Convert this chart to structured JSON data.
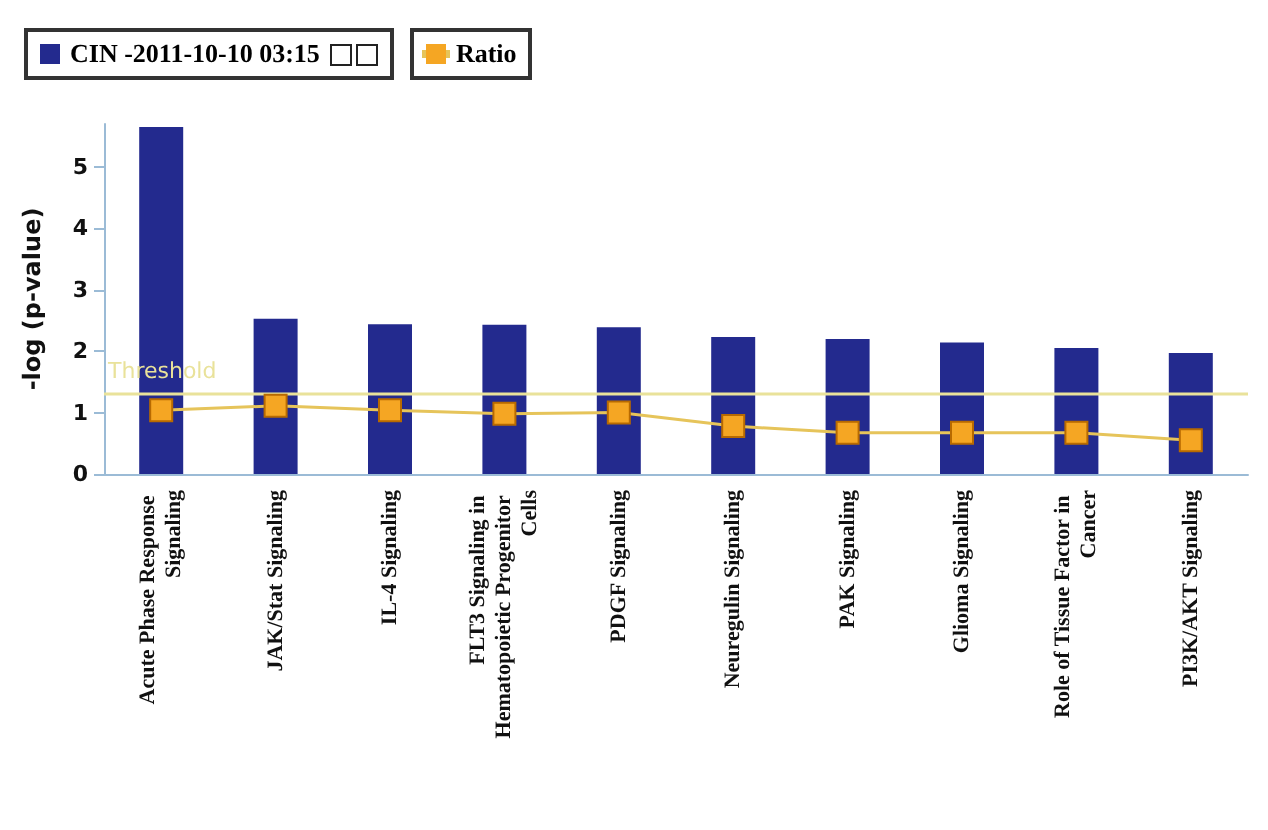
{
  "chart_data": {
    "type": "bar",
    "ylabel": "-log (p-value)",
    "categories": [
      "Acute Phase Response Signaling",
      "JAK/Stat Signaling",
      "IL-4 Signaling",
      "FLT3 Signaling in Hematopoietic Progenitor Cells",
      "PDGF Signaling",
      "Neuregulin Signaling",
      "PAK Signaling",
      "Glioma Signaling",
      "Role of Tissue Factor in Cancer",
      "PI3K/AKT Signaling"
    ],
    "series": [
      {
        "name": "CIN -2011-10-10 03:15",
        "color": "#232a8e",
        "values": [
          5.65,
          2.53,
          2.44,
          2.43,
          2.39,
          2.23,
          2.2,
          2.14,
          2.05,
          1.97
        ]
      },
      {
        "name": "Ratio",
        "type": "line",
        "color": "#f5a623",
        "marker": "square",
        "line_style": "solid",
        "values": [
          1.04,
          1.11,
          1.04,
          0.98,
          1.0,
          0.78,
          0.67,
          0.67,
          0.67,
          0.55
        ]
      }
    ],
    "ylim": [
      0,
      5.7
    ],
    "yticks": [
      0,
      1,
      2,
      3,
      4,
      5
    ],
    "grid": false,
    "legend": "top left",
    "ref_lines": [
      {
        "axis": "y",
        "value": 1.3,
        "label": "Threshold",
        "color": "#e9e29a"
      }
    ]
  }
}
